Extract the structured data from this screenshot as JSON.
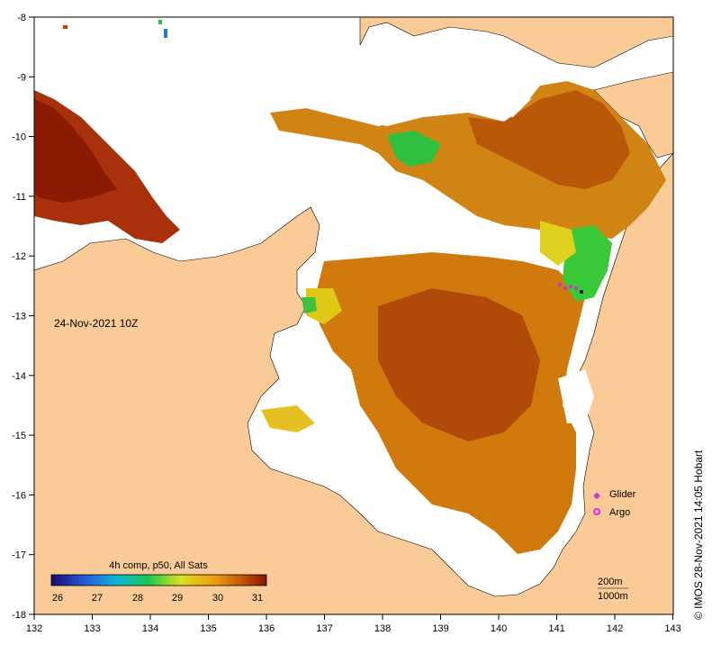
{
  "map": {
    "timestamp": "24-Nov-2021 10Z",
    "credit": "© IMOS 28-Nov-2021 14:05 Hobart",
    "x_ticks": [
      "132",
      "133",
      "134",
      "135",
      "136",
      "137",
      "138",
      "139",
      "140",
      "141",
      "142",
      "143"
    ],
    "y_ticks": [
      "-8",
      "-9",
      "-10",
      "-11",
      "-12",
      "-13",
      "-14",
      "-15",
      "-16",
      "-17",
      "-18"
    ],
    "legend": {
      "glider": "Glider",
      "argo": "Argo"
    },
    "colorbar": {
      "title": "4h comp, p50, All Sats",
      "labels": [
        "26",
        "27",
        "28",
        "29",
        "30",
        "31"
      ],
      "colors": [
        "#1a0a6e",
        "#2456d8",
        "#10b4d8",
        "#18c850",
        "#d8e020",
        "#f0a010",
        "#c85a08",
        "#8a1202"
      ]
    },
    "depth_labels": [
      "200m",
      "1000m"
    ],
    "colors": {
      "land": "#facb96",
      "nodata": "#ffffff",
      "warm": "#c46a0a",
      "hot": "#9a2a05",
      "glider": "#cc33cc",
      "argo": "#ee22ee"
    }
  }
}
